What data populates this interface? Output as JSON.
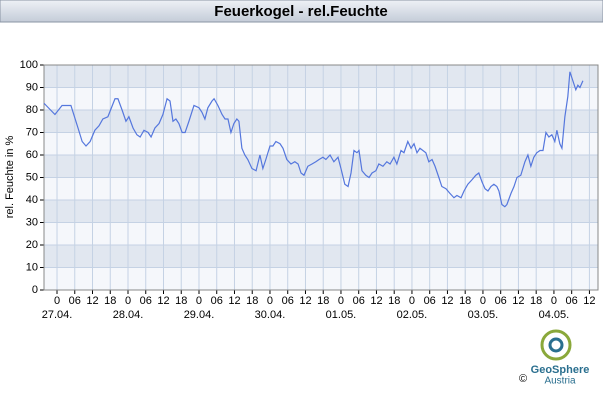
{
  "chart_data": {
    "type": "line",
    "title": "Feuerkogel - rel.Feuchte",
    "y_label": "rel. Feuchte in %",
    "x": [
      -4.4,
      -0.7,
      1.7,
      4.7,
      7.1,
      8.5,
      9.8,
      11.2,
      12.8,
      14.2,
      15.5,
      17.2,
      19.6,
      20.6,
      22.0,
      23.3,
      24.3,
      25.7,
      27.0,
      28.1,
      29.4,
      30.8,
      31.8,
      33.1,
      34.5,
      35.8,
      37.2,
      38.2,
      39.2,
      40.2,
      41.2,
      42.3,
      43.3,
      44.6,
      46.3,
      48.0,
      49.0,
      50.0,
      51.0,
      52.4,
      53.1,
      54.4,
      55.8,
      56.8,
      57.8,
      58.8,
      59.8,
      60.8,
      61.5,
      62.5,
      63.5,
      64.5,
      65.9,
      67.3,
      68.6,
      69.6,
      70.6,
      72.0,
      73.0,
      74.0,
      75.4,
      76.4,
      77.7,
      79.1,
      80.4,
      81.5,
      82.5,
      83.5,
      84.8,
      86.2,
      87.5,
      88.6,
      89.9,
      90.9,
      92.3,
      93.6,
      95.0,
      96.0,
      97.3,
      98.4,
      99.4,
      100.4,
      101.4,
      102.1,
      103.1,
      104.4,
      105.5,
      106.5,
      107.8,
      108.8,
      110.2,
      111.5,
      112.6,
      113.9,
      114.9,
      116.3,
      117.3,
      118.6,
      119.7,
      120.7,
      121.7,
      122.7,
      123.7,
      124.7,
      125.7,
      126.8,
      127.8,
      129.1,
      130.1,
      131.5,
      132.8,
      134.2,
      135.2,
      136.6,
      137.6,
      138.9,
      140.3,
      141.6,
      142.6,
      143.7,
      144.7,
      145.7,
      146.7,
      147.7,
      148.7,
      149.4,
      150.4,
      151.4,
      152.1,
      153.5,
      154.5,
      155.5,
      156.8,
      158.2,
      159.2,
      160.2,
      161.2,
      162.2,
      163.3,
      164.3,
      165.3,
      166.3,
      167.3,
      168.3,
      169.0,
      170.0,
      170.7,
      171.7,
      172.7,
      173.4,
      174.4,
      175.4,
      176.1,
      176.8,
      177.8
    ],
    "series": [
      {
        "name": "rel. Feuchte",
        "color": "#5577dd",
        "values": [
          83,
          78,
          82,
          82,
          72,
          66,
          64,
          66,
          71,
          73,
          76,
          77,
          85,
          85,
          80,
          75,
          77,
          72,
          69,
          68,
          71,
          70,
          68,
          72,
          74,
          78,
          85,
          84,
          75,
          76,
          74,
          70,
          70,
          75,
          82,
          81,
          79,
          76,
          81,
          84,
          85,
          82,
          78,
          76,
          76,
          70,
          74,
          76,
          75,
          63,
          60,
          58,
          54,
          53,
          60,
          54,
          58,
          64,
          64,
          66,
          65,
          63,
          58,
          56,
          57,
          56,
          52,
          51,
          55,
          56,
          57,
          58,
          59,
          58,
          60,
          57,
          59,
          54,
          47,
          46,
          52,
          62,
          61,
          62,
          53,
          51,
          50,
          52,
          53,
          56,
          55,
          57,
          56,
          59,
          56,
          62,
          61,
          66,
          63,
          65,
          61,
          63,
          62,
          61,
          57,
          58,
          55,
          50,
          46,
          45,
          43,
          41,
          42,
          41,
          44,
          47,
          49,
          51,
          52,
          48,
          45,
          44,
          46,
          47,
          46,
          44,
          38,
          37,
          38,
          43,
          46,
          50,
          51,
          57,
          60,
          55,
          59,
          61,
          62,
          62,
          70,
          68,
          69,
          66,
          71,
          65,
          63,
          77,
          86,
          97,
          93,
          89,
          91,
          90,
          93
        ]
      }
    ],
    "xlim": [
      -4.4,
      182.9
    ],
    "xticks": [
      {
        "value": 0,
        "label": "0"
      },
      {
        "value": 6,
        "label": "06"
      },
      {
        "value": 12,
        "label": "12"
      },
      {
        "value": 18,
        "label": "18"
      },
      {
        "value": 24,
        "label": "0"
      },
      {
        "value": 30,
        "label": "06"
      },
      {
        "value": 36,
        "label": "12"
      },
      {
        "value": 42,
        "label": "18"
      },
      {
        "value": 48,
        "label": "0"
      },
      {
        "value": 54,
        "label": "06"
      },
      {
        "value": 60,
        "label": "12"
      },
      {
        "value": 66,
        "label": "18"
      },
      {
        "value": 72,
        "label": "0"
      },
      {
        "value": 78,
        "label": "06"
      },
      {
        "value": 84,
        "label": "12"
      },
      {
        "value": 90,
        "label": "18"
      },
      {
        "value": 96,
        "label": "0"
      },
      {
        "value": 102,
        "label": "06"
      },
      {
        "value": 108,
        "label": "12"
      },
      {
        "value": 114,
        "label": "18"
      },
      {
        "value": 120,
        "label": "0"
      },
      {
        "value": 126,
        "label": "06"
      },
      {
        "value": 132,
        "label": "12"
      },
      {
        "value": 138,
        "label": "18"
      },
      {
        "value": 144,
        "label": "0"
      },
      {
        "value": 150,
        "label": "06"
      },
      {
        "value": 156,
        "label": "12"
      },
      {
        "value": 162,
        "label": "18"
      },
      {
        "value": 168,
        "label": "0"
      },
      {
        "value": 174,
        "label": "06"
      },
      {
        "value": 180,
        "label": "12"
      }
    ],
    "x_date_labels": [
      {
        "value": 0,
        "label": "27.04."
      },
      {
        "value": 24,
        "label": "28.04."
      },
      {
        "value": 48,
        "label": "29.04."
      },
      {
        "value": 72,
        "label": "30.04."
      },
      {
        "value": 96,
        "label": "01.05."
      },
      {
        "value": 120,
        "label": "02.05."
      },
      {
        "value": 144,
        "label": "03.05."
      },
      {
        "value": 168,
        "label": "04.05."
      }
    ],
    "ylim": [
      0,
      100
    ],
    "yticks": [
      0,
      10,
      20,
      30,
      40,
      50,
      60,
      70,
      80,
      90,
      100
    ],
    "grid": true
  },
  "logo": {
    "name": "GeoSphere",
    "sub": "Austria",
    "copyright": "©"
  }
}
